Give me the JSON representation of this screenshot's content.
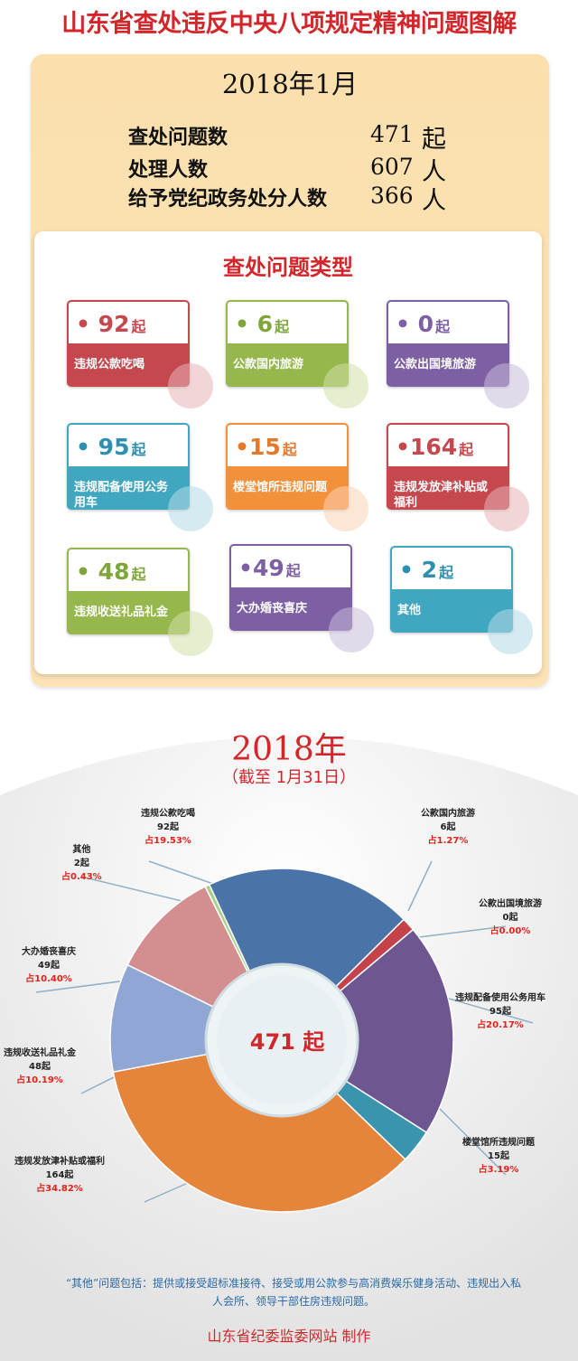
{
  "title": "山东省查处违反中央八项规定精神问题图解",
  "summary": {
    "month": "2018年1月",
    "stats": [
      {
        "label": "查处问题数",
        "value": "471",
        "unit": "起"
      },
      {
        "label": "处理人数",
        "value": "607",
        "unit": "人"
      },
      {
        "label": "给予党纪政务处分人数",
        "value": "366",
        "unit": "人"
      }
    ]
  },
  "types": {
    "title": "查处问题类型",
    "cards": [
      {
        "value": "• 92",
        "unit": "起",
        "label": "违规公款吃喝",
        "color": "#c4484d"
      },
      {
        "value": "• 6",
        "unit": "起",
        "label": "公款国内旅游",
        "color": "#95b74b"
      },
      {
        "value": "• 0",
        "unit": "起",
        "label": "公款出国境旅游",
        "color": "#7d5fa3"
      },
      {
        "value": "• 95",
        "unit": "起",
        "label": "违规配备使用公务用车",
        "color": "#41a6c0"
      },
      {
        "value": "•15",
        "unit": "起",
        "label": "楼堂馆所违规问题",
        "color": "#f3913a"
      },
      {
        "value": "•164",
        "unit": "起",
        "label": "违规发放津补贴或福利",
        "color": "#c4484d"
      },
      {
        "value": "• 48",
        "unit": "起",
        "label": "违规收送礼品礼金",
        "color": "#95b74b"
      },
      {
        "value": "•49",
        "unit": "起",
        "label": "大办婚丧喜庆",
        "color": "#7d5fa3"
      },
      {
        "value": "• 2",
        "unit": "起",
        "label": "其他",
        "color": "#41a6c0"
      }
    ]
  },
  "year_title": "2018年",
  "year_sub": "（截至 1月31日）",
  "center_label": "471 起",
  "chart_data": {
    "type": "pie",
    "total": 471,
    "slices": [
      {
        "name": "违规公款吃喝",
        "count": "92起",
        "pct": "占19.53%",
        "value": 92,
        "color": "#4a73a7"
      },
      {
        "name": "公款国内旅游",
        "count": "6起",
        "pct": "占1.27%",
        "value": 6,
        "color": "#c4424a"
      },
      {
        "name": "公款出国境旅游",
        "count": "0起",
        "pct": "占0.00%",
        "value": 0,
        "color": "#7a5a96"
      },
      {
        "name": "违规配备使用公务用车",
        "count": "95起",
        "pct": "占20.17%",
        "value": 95,
        "color": "#6e5690"
      },
      {
        "name": "楼堂馆所违规问题",
        "count": "15起",
        "pct": "占3.19%",
        "value": 15,
        "color": "#3a94ae"
      },
      {
        "name": "违规发放津补贴或福利",
        "count": "164起",
        "pct": "占34.82%",
        "value": 164,
        "color": "#e5853c"
      },
      {
        "name": "违规收送礼品礼金",
        "count": "48起",
        "pct": "占10.19%",
        "value": 48,
        "color": "#90a6d4"
      },
      {
        "name": "大办婚丧喜庆",
        "count": "49起",
        "pct": "占10.40%",
        "value": 49,
        "color": "#d38f8f"
      },
      {
        "name": "其他",
        "count": "2起",
        "pct": "占0.43%",
        "value": 2,
        "color": "#a9cf89"
      }
    ]
  },
  "note": "“其他”问题包括：提供或接受超标准接待、接受或用公款参与高消费娱乐健身活动、违规出入私人会所、领导干部住房违规问题。",
  "footer": "山东省纪委监委网站 制作"
}
